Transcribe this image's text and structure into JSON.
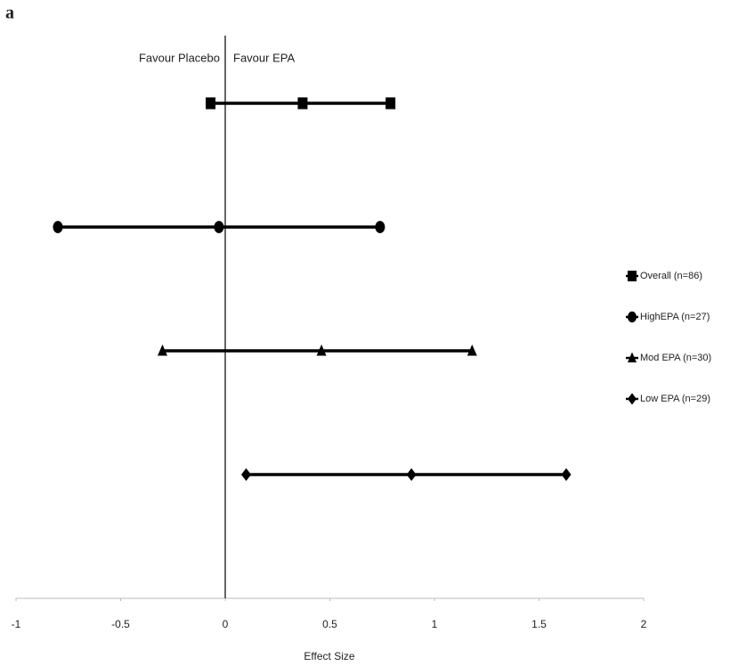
{
  "chart_data": {
    "type": "forest",
    "panel_label": "a",
    "annotations": [
      "Favour Placebo",
      "Favour EPA"
    ],
    "xlabel": "Effect Size",
    "xlim": [
      -1,
      2
    ],
    "xticks": [
      -1,
      -0.5,
      0,
      0.5,
      1,
      1.5,
      2
    ],
    "reference_line": 0,
    "series": [
      {
        "name": "Overall (n=86)",
        "marker": "square",
        "color": "#000000",
        "values": [
          -0.07,
          0.37,
          0.79
        ]
      },
      {
        "name": "HighEPA (n=27)",
        "marker": "circle",
        "color": "#000000",
        "values": [
          -0.8,
          -0.03,
          0.74
        ]
      },
      {
        "name": "Mod EPA (n=30)",
        "marker": "triangle",
        "color": "#000000",
        "values": [
          -0.3,
          0.46,
          1.18
        ]
      },
      {
        "name": "Low EPA (n=29)",
        "marker": "diamond",
        "color": "#000000",
        "values": [
          0.1,
          0.89,
          1.63
        ]
      }
    ]
  }
}
